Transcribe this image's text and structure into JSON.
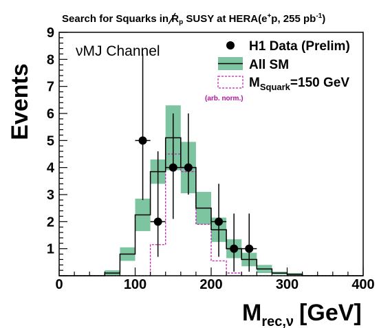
{
  "chart_data": {
    "type": "bar",
    "title_main": "Search for Squarks in ",
    "title_rp": "R",
    "title_rp_sub": "p",
    "title_rest": " SUSY at HERA(e",
    "title_plus": "+",
    "title_p": "p, 255 pb",
    "title_exp": "-1",
    "title_close": ")",
    "ylabel": "Events",
    "xlabel_main": "M",
    "xlabel_sub": "rec,ν",
    "xlabel_unit": "[GeV]",
    "xlim": [
      0,
      400
    ],
    "ylim": [
      0,
      9
    ],
    "x_ticks": [
      "0",
      "100",
      "200",
      "300",
      "400"
    ],
    "y_ticks": [
      "1",
      "2",
      "3",
      "4",
      "5",
      "6",
      "7",
      "8",
      "9"
    ],
    "channel_label": "νMJ Channel",
    "legend": {
      "data": "H1 Data (Prelim)",
      "sm": "All SM",
      "squark_main": "M",
      "squark_sub": "Squark",
      "squark_rest": "=150 GeV",
      "squark_note": "(arb. norm.)"
    },
    "colors": {
      "sm_band": "#7dc4a0",
      "squark": "#c020b0",
      "data": "#000000"
    },
    "bin_edges": [
      0,
      20,
      40,
      60,
      80,
      100,
      120,
      140,
      160,
      180,
      200,
      220,
      240,
      260,
      280,
      300,
      320,
      340,
      360,
      380,
      400
    ],
    "all_sm": [
      0,
      0,
      0,
      0.1,
      0.8,
      2.25,
      3.85,
      5.1,
      4.0,
      2.5,
      1.7,
      1.0,
      0.6,
      0.25,
      0.1,
      0.05,
      0,
      0,
      0,
      0
    ],
    "all_sm_err": [
      0,
      0,
      0,
      0.1,
      0.25,
      0.6,
      0.45,
      1.2,
      0.95,
      0.6,
      0.45,
      0.35,
      0.25,
      0.15,
      0.05,
      0.05,
      0,
      0,
      0,
      0
    ],
    "squark": [
      0,
      0,
      0,
      0,
      0,
      0,
      1.15,
      4.5,
      3.85,
      1.9,
      0.55,
      0.1,
      0,
      0,
      0,
      0,
      0,
      0,
      0,
      0
    ],
    "data_points": [
      {
        "x": 110,
        "y": 5,
        "err_low": 2.2,
        "err_high": 3.2
      },
      {
        "x": 130,
        "y": 2,
        "err_low": 1.3,
        "err_high": 2.6
      },
      {
        "x": 150,
        "y": 4,
        "err_low": 1.9,
        "err_high": 2.0
      },
      {
        "x": 170,
        "y": 4,
        "err_low": 1.0,
        "err_high": 2.0
      },
      {
        "x": 210,
        "y": 2,
        "err_low": 1.3,
        "err_high": 1.4
      },
      {
        "x": 230,
        "y": 1,
        "err_low": 0.85,
        "err_high": 1.3
      },
      {
        "x": 250,
        "y": 1,
        "err_low": 0.85,
        "err_high": 1.3
      }
    ],
    "grid": false,
    "legend_position": "top-right"
  }
}
